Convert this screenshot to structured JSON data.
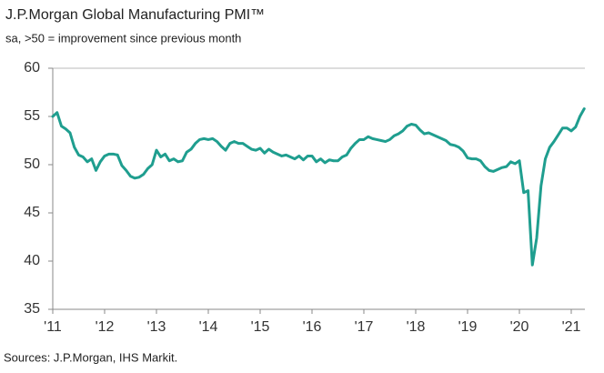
{
  "chart_data": {
    "type": "line",
    "title": "J.P.Morgan Global Manufacturing PMI™",
    "subtitle": "sa, >50 = improvement since previous month",
    "source": "Sources: J.P.Morgan, IHS Markit.",
    "categories": [
      "'11",
      null,
      null,
      null,
      null,
      null,
      null,
      null,
      null,
      null,
      null,
      null,
      "'12",
      null,
      null,
      null,
      null,
      null,
      null,
      null,
      null,
      null,
      null,
      null,
      "'13",
      null,
      null,
      null,
      null,
      null,
      null,
      null,
      null,
      null,
      null,
      null,
      "'14",
      null,
      null,
      null,
      null,
      null,
      null,
      null,
      null,
      null,
      null,
      null,
      "'15",
      null,
      null,
      null,
      null,
      null,
      null,
      null,
      null,
      null,
      null,
      null,
      "'16",
      null,
      null,
      null,
      null,
      null,
      null,
      null,
      null,
      null,
      null,
      null,
      "'17",
      null,
      null,
      null,
      null,
      null,
      null,
      null,
      null,
      null,
      null,
      null,
      "'18",
      null,
      null,
      null,
      null,
      null,
      null,
      null,
      null,
      null,
      null,
      null,
      "'19",
      null,
      null,
      null,
      null,
      null,
      null,
      null,
      null,
      null,
      null,
      null,
      "'20",
      null,
      null,
      null,
      null,
      null,
      null,
      null,
      null,
      null,
      null,
      null,
      "'21",
      null,
      null,
      null
    ],
    "series": [
      {
        "name": "PMI",
        "color": "#1f9e8f",
        "values": [
          55.0,
          55.4,
          54.0,
          53.7,
          53.3,
          51.8,
          51.0,
          50.8,
          50.3,
          50.6,
          49.4,
          50.3,
          50.9,
          51.1,
          51.1,
          51.0,
          49.9,
          49.4,
          48.8,
          48.6,
          48.7,
          49.0,
          49.6,
          50.0,
          51.5,
          50.8,
          51.1,
          50.4,
          50.6,
          50.3,
          50.4,
          51.3,
          51.6,
          52.2,
          52.6,
          52.7,
          52.6,
          52.7,
          52.4,
          51.9,
          51.5,
          52.2,
          52.4,
          52.2,
          52.2,
          51.9,
          51.6,
          51.5,
          51.7,
          51.2,
          51.6,
          51.3,
          51.1,
          50.9,
          51.0,
          50.8,
          50.6,
          50.9,
          50.5,
          50.9,
          50.9,
          50.3,
          50.6,
          50.2,
          50.5,
          50.4,
          50.4,
          50.8,
          51.0,
          51.7,
          52.2,
          52.6,
          52.6,
          52.9,
          52.7,
          52.6,
          52.5,
          52.4,
          52.6,
          53.0,
          53.2,
          53.5,
          54.0,
          54.2,
          54.1,
          53.6,
          53.2,
          53.3,
          53.1,
          52.9,
          52.7,
          52.5,
          52.1,
          52.0,
          51.8,
          51.4,
          50.7,
          50.6,
          50.6,
          50.4,
          49.8,
          49.4,
          49.3,
          49.5,
          49.7,
          49.8,
          50.3,
          50.1,
          50.4,
          47.1,
          47.3,
          39.6,
          42.4,
          47.8,
          50.6,
          51.8,
          52.4,
          53.1,
          53.8,
          53.8,
          53.5,
          53.9,
          55.0,
          55.8
        ]
      }
    ],
    "ylim": [
      35,
      60
    ],
    "yticks": [
      35,
      40,
      45,
      50,
      55,
      60
    ],
    "grid": false
  }
}
